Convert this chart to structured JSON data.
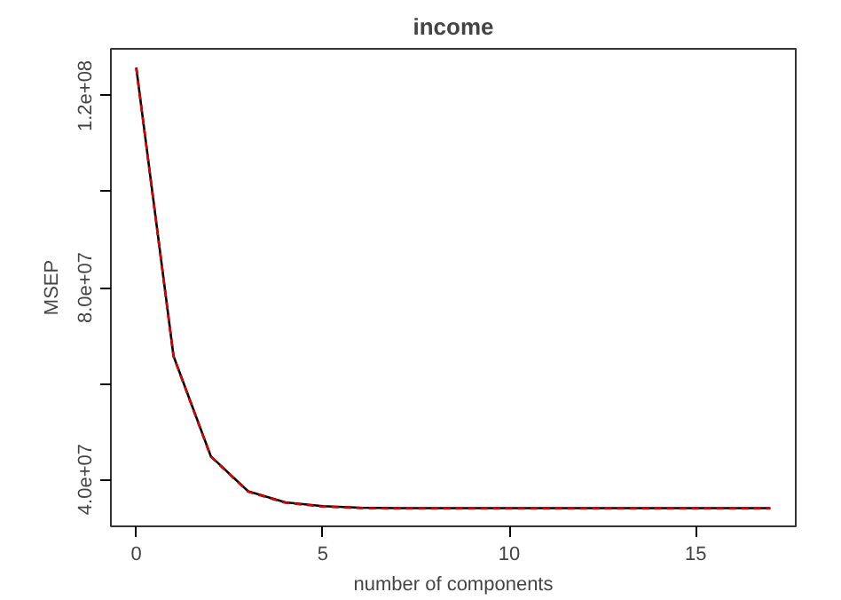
{
  "chart_data": {
    "type": "line",
    "title": "income",
    "xlabel": "number of components",
    "ylabel": "MSEP",
    "x": [
      0,
      1,
      2,
      3,
      4,
      5,
      6,
      7,
      8,
      9,
      10,
      11,
      12,
      13,
      14,
      15,
      16,
      17
    ],
    "series": [
      {
        "color": "#000000",
        "line_style": "solid",
        "values": [
          125900000,
          65700000,
          44800000,
          37500000,
          35200000,
          34400000,
          34100000,
          34000000,
          34000000,
          34000000,
          34000000,
          34000000,
          34000000,
          34000000,
          34000000,
          34000000,
          34000000,
          34000000
        ]
      },
      {
        "color": "#dd0000",
        "line_style": "dashed",
        "values": [
          125800000,
          65600000,
          44700000,
          37400000,
          35100000,
          34300000,
          34000000,
          33900000,
          33900000,
          33900000,
          33900000,
          33900000,
          33900000,
          33900000,
          33900000,
          33900000,
          33900000,
          33900000
        ]
      }
    ],
    "xlim": [
      -0.68,
      17.68
    ],
    "ylim": [
      30200000,
      129800000
    ],
    "xticks": [
      0,
      5,
      10,
      15
    ],
    "yticks": [
      {
        "value": 40000000,
        "label": "4.0e+07"
      },
      {
        "value": 60000000,
        "label": null
      },
      {
        "value": 80000000,
        "label": "8.0e+07"
      },
      {
        "value": 100000000,
        "label": null
      },
      {
        "value": 120000000,
        "label": "1.2e+08"
      }
    ],
    "grid": false,
    "marker": "none"
  }
}
